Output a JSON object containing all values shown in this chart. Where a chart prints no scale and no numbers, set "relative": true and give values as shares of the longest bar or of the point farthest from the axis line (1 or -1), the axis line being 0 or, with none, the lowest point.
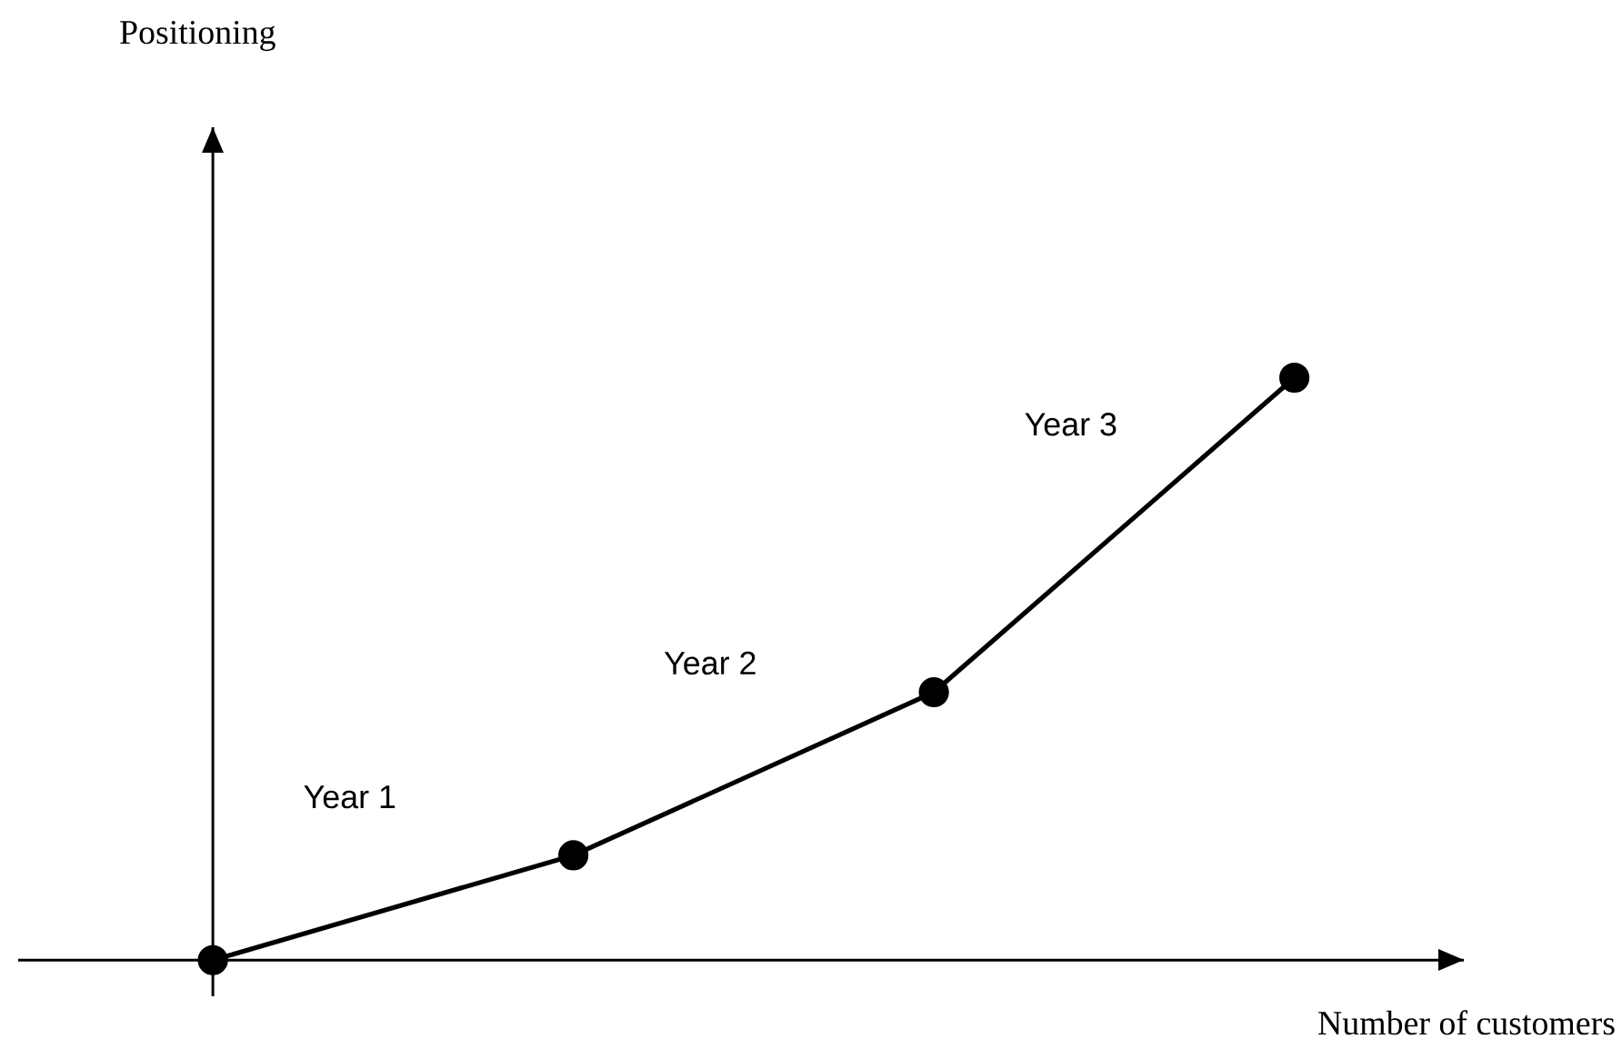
{
  "chart_data": {
    "type": "line",
    "relative": true,
    "xlabel": "Number of customers",
    "categories": [
      null,
      null,
      null,
      null
    ],
    "series": [
      {
        "color": "#000000",
        "values": [
          0,
          0.18,
          0.46,
          1
        ]
      }
    ],
    "marker": "circle",
    "annotations": [
      "Year 1",
      "Year 2",
      "Year 3",
      "Positioning"
    ]
  }
}
